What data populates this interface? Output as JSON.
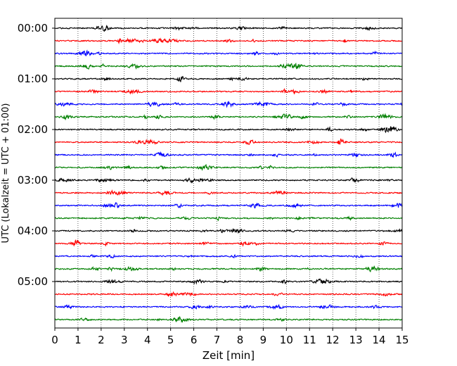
{
  "chart_data": {
    "type": "line",
    "title": "",
    "xlabel": "Zeit  [min]",
    "ylabel": "UTC (Lokalzeit = UTC + 01:00)",
    "xlim": [
      0,
      15
    ],
    "x_ticks": [
      0,
      1,
      2,
      3,
      4,
      5,
      6,
      7,
      8,
      9,
      10,
      11,
      12,
      13,
      14,
      15
    ],
    "x_tick_labels": [
      "0",
      "1",
      "2",
      "3",
      "4",
      "5",
      "6",
      "7",
      "8",
      "9",
      "10",
      "11",
      "12",
      "13",
      "14",
      "15"
    ],
    "y_tick_labels": [
      "00:00",
      "01:00",
      "02:00",
      "03:00",
      "04:00",
      "05:00"
    ],
    "trace_interval_minutes": 15,
    "grid": "vertical-dotted",
    "trace_colors": [
      "#000000",
      "#ff0000",
      "#0000ff",
      "#008000"
    ],
    "traces": [
      "00:00",
      "00:15",
      "00:30",
      "00:45",
      "01:00",
      "01:15",
      "01:30",
      "01:45",
      "02:00",
      "02:15",
      "02:30",
      "02:45",
      "03:00",
      "03:15",
      "03:30",
      "03:45",
      "04:00",
      "04:15",
      "04:30",
      "04:45",
      "05:00",
      "05:15",
      "05:30",
      "05:45"
    ]
  }
}
